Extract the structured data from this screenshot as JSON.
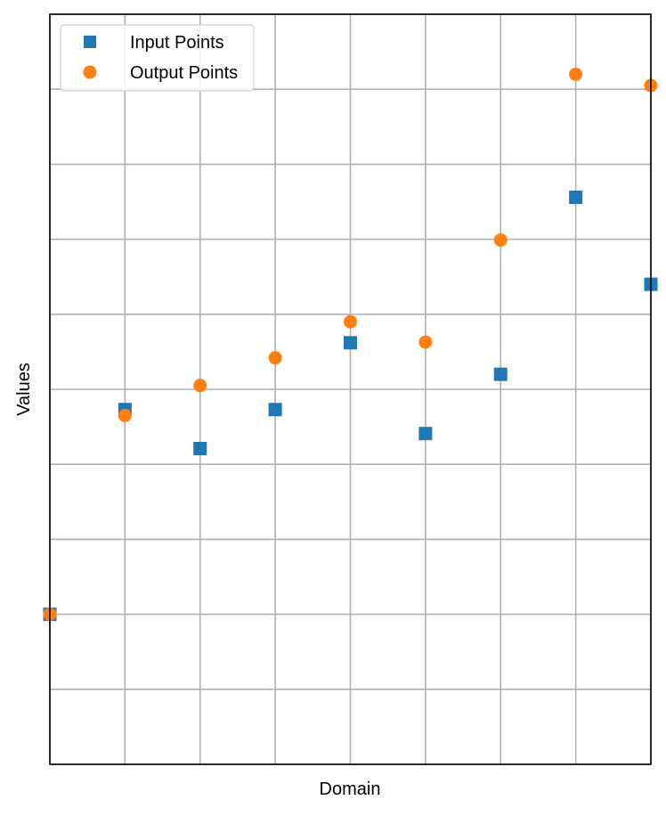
{
  "chart_data": {
    "type": "scatter",
    "title": "",
    "xlabel": "Domain",
    "ylabel": "Values",
    "xlim": [
      0,
      8
    ],
    "ylim": [
      -1,
      9
    ],
    "grid": true,
    "x_ticks": [
      0,
      1,
      2,
      3,
      4,
      5,
      6,
      7,
      8
    ],
    "y_ticks": [
      -1,
      0,
      1,
      2,
      3,
      4,
      5,
      6,
      7,
      8,
      9
    ],
    "legend_position": "top-left",
    "series": [
      {
        "name": "Input Points",
        "marker": "square",
        "color": "#1f77b4",
        "x": [
          0,
          1,
          2,
          3,
          4,
          5,
          6,
          7,
          8
        ],
        "y": [
          1.0,
          3.73,
          3.21,
          3.73,
          4.62,
          3.41,
          4.2,
          6.56,
          5.4
        ]
      },
      {
        "name": "Output Points",
        "marker": "circle",
        "color": "#ff7f0e",
        "x": [
          0,
          1,
          2,
          3,
          4,
          5,
          6,
          7,
          8
        ],
        "y": [
          1.0,
          3.65,
          4.05,
          4.42,
          4.9,
          4.63,
          5.99,
          8.2,
          8.05
        ]
      }
    ]
  }
}
